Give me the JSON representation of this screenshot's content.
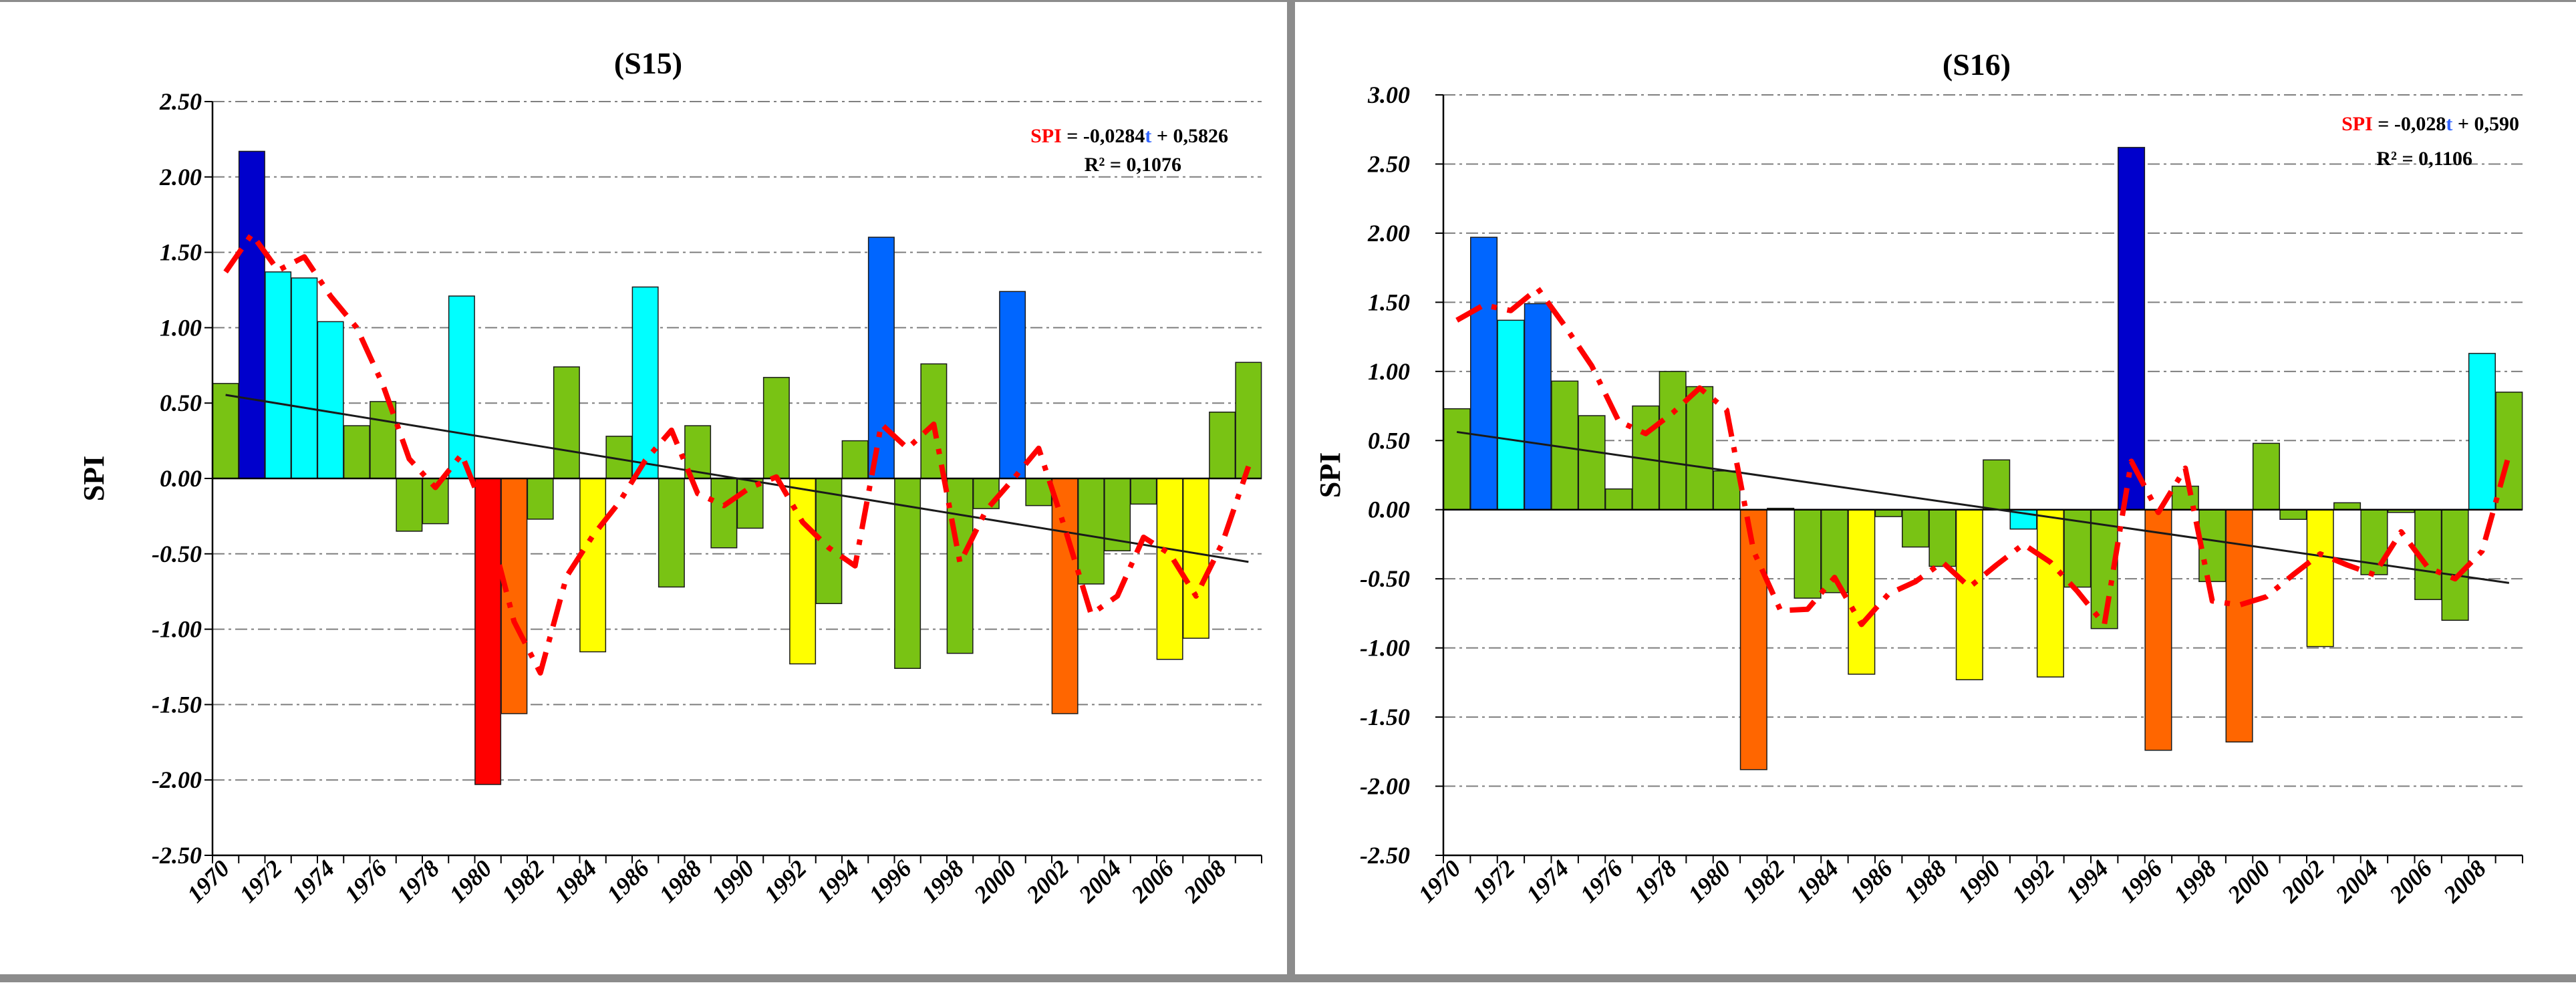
{
  "chart_data": [
    {
      "type": "bar",
      "title": "(S15)",
      "ylabel": "SPI",
      "xlabel": "",
      "ylim": [
        -2.5,
        2.5
      ],
      "yticks": [
        "2.50",
        "2.00",
        "1.50",
        "1.00",
        "0.50",
        "0.00",
        "-0.50",
        "-1.00",
        "-1.50",
        "-2.00",
        "-2.50"
      ],
      "xtick_labels": [
        "1970",
        "1972",
        "1974",
        "1976",
        "1978",
        "1980",
        "1982",
        "1984",
        "1986",
        "1988",
        "1990",
        "1992",
        "1994",
        "1996",
        "1998",
        "2000",
        "2002",
        "2004",
        "2006",
        "2008"
      ],
      "years": [
        1970,
        1971,
        1972,
        1973,
        1974,
        1975,
        1976,
        1977,
        1978,
        1979,
        1980,
        1981,
        1982,
        1983,
        1984,
        1985,
        1986,
        1987,
        1988,
        1989,
        1990,
        1991,
        1992,
        1993,
        1994,
        1995,
        1996,
        1997,
        1998,
        1999,
        2000,
        2001,
        2002,
        2003,
        2004,
        2005,
        2006,
        2007,
        2008,
        2009
      ],
      "values": [
        0.63,
        2.17,
        1.37,
        1.33,
        1.04,
        0.35,
        0.51,
        -0.35,
        -0.3,
        1.21,
        -2.03,
        -1.56,
        -0.27,
        0.74,
        -1.15,
        0.28,
        1.27,
        -0.72,
        0.35,
        -0.46,
        -0.33,
        0.67,
        -1.23,
        -0.83,
        0.25,
        1.6,
        -1.26,
        0.76,
        -1.16,
        -0.2,
        1.24,
        -0.18,
        -1.56,
        -0.7,
        -0.48,
        -0.17,
        -1.2,
        -1.06,
        0.44,
        0.77
      ],
      "colors": [
        "#79c314",
        "#0000cc",
        "#00ffff",
        "#00ffff",
        "#00ffff",
        "#79c314",
        "#79c314",
        "#79c314",
        "#79c314",
        "#00ffff",
        "#ff0000",
        "#ff6600",
        "#79c314",
        "#79c314",
        "#ffff00",
        "#79c314",
        "#00ffff",
        "#79c314",
        "#79c314",
        "#79c314",
        "#79c314",
        "#79c314",
        "#ffff00",
        "#79c314",
        "#79c314",
        "#0066ff",
        "#79c314",
        "#79c314",
        "#79c314",
        "#79c314",
        "#0066ff",
        "#79c314",
        "#ff6600",
        "#79c314",
        "#79c314",
        "#79c314",
        "#ffff00",
        "#ffff00",
        "#79c314",
        "#79c314"
      ],
      "trendline": {
        "slope": -0.0284,
        "intercept": 0.5826
      },
      "moving_average": [
        1.37,
        1.62,
        1.38,
        1.47,
        1.21,
        1.0,
        0.62,
        0.13,
        -0.06,
        0.16,
        -0.28,
        -0.95,
        -1.29,
        -0.65,
        -0.38,
        -0.16,
        0.12,
        0.32,
        -0.1,
        -0.18,
        -0.06,
        0.01,
        -0.29,
        -0.46,
        -0.58,
        0.36,
        0.2,
        0.36,
        -0.56,
        -0.21,
        -0.01,
        0.2,
        -0.33,
        -0.9,
        -0.78,
        -0.39,
        -0.5,
        -0.78,
        -0.43,
        0.08
      ],
      "equation": {
        "label": "SPI",
        "text": " = -0,0284",
        "var": "t",
        "rest": " + 0,5826",
        "r2": "R² = 0,1076"
      }
    },
    {
      "type": "bar",
      "title": "(S16)",
      "ylabel": "SPI",
      "xlabel": "",
      "ylim": [
        -2.5,
        3.0
      ],
      "yticks": [
        "3.00",
        "2.50",
        "2.00",
        "1.50",
        "1.00",
        "0.50",
        "0.00",
        "-0.50",
        "-1.00",
        "-1.50",
        "-2.00",
        "-2.50"
      ],
      "xtick_labels": [
        "1970",
        "1972",
        "1974",
        "1976",
        "1978",
        "1980",
        "1982",
        "1984",
        "1986",
        "1988",
        "1990",
        "1992",
        "1994",
        "1996",
        "1998",
        "2000",
        "2002",
        "2004",
        "2006",
        "2008"
      ],
      "years": [
        1970,
        1971,
        1972,
        1973,
        1974,
        1975,
        1976,
        1977,
        1978,
        1979,
        1980,
        1981,
        1982,
        1983,
        1984,
        1985,
        1986,
        1987,
        1988,
        1989,
        1990,
        1991,
        1992,
        1993,
        1994,
        1995,
        1996,
        1997,
        1998,
        1999,
        2000,
        2001,
        2002,
        2003,
        2004,
        2005,
        2006,
        2007,
        2008,
        2009
      ],
      "values": [
        0.73,
        1.97,
        1.37,
        1.49,
        0.93,
        0.68,
        0.15,
        0.75,
        1.0,
        0.89,
        0.28,
        -1.88,
        0.01,
        -0.64,
        -0.6,
        -1.19,
        -0.05,
        -0.27,
        -0.41,
        -1.23,
        0.36,
        -0.14,
        -1.21,
        -0.56,
        -0.86,
        2.62,
        -1.74,
        0.17,
        -0.52,
        -1.68,
        0.48,
        -0.07,
        -0.99,
        0.05,
        -0.47,
        -0.02,
        -0.65,
        -0.8,
        1.13,
        0.85
      ],
      "colors": [
        "#79c314",
        "#0066ff",
        "#00ffff",
        "#0066ff",
        "#79c314",
        "#79c314",
        "#79c314",
        "#79c314",
        "#79c314",
        "#79c314",
        "#79c314",
        "#ff6600",
        "#79c314",
        "#79c314",
        "#79c314",
        "#ffff00",
        "#79c314",
        "#79c314",
        "#79c314",
        "#ffff00",
        "#79c314",
        "#00ffff",
        "#ffff00",
        "#79c314",
        "#79c314",
        "#0000cc",
        "#ff6600",
        "#79c314",
        "#79c314",
        "#ff6600",
        "#79c314",
        "#79c314",
        "#ffff00",
        "#79c314",
        "#79c314",
        "#79c314",
        "#79c314",
        "#79c314",
        "#00ffff",
        "#79c314"
      ],
      "trendline": {
        "slope": -0.028,
        "intercept": 0.59
      },
      "moving_average": [
        1.37,
        1.48,
        1.44,
        1.6,
        1.33,
        1.04,
        0.64,
        0.55,
        0.7,
        0.88,
        0.72,
        -0.3,
        -0.73,
        -0.72,
        -0.49,
        -0.83,
        -0.61,
        -0.52,
        -0.38,
        -0.56,
        -0.4,
        -0.25,
        -0.38,
        -0.59,
        -0.83,
        0.35,
        -0.02,
        0.3,
        -0.66,
        -0.69,
        -0.63,
        -0.47,
        -0.32,
        -0.4,
        -0.47,
        -0.16,
        -0.42,
        -0.5,
        -0.3,
        0.4
      ],
      "equation": {
        "label": "SPI",
        "text": " = -0,028",
        "var": "t",
        "rest": " + 0,590",
        "r2": "R² = 0,1106"
      }
    }
  ]
}
